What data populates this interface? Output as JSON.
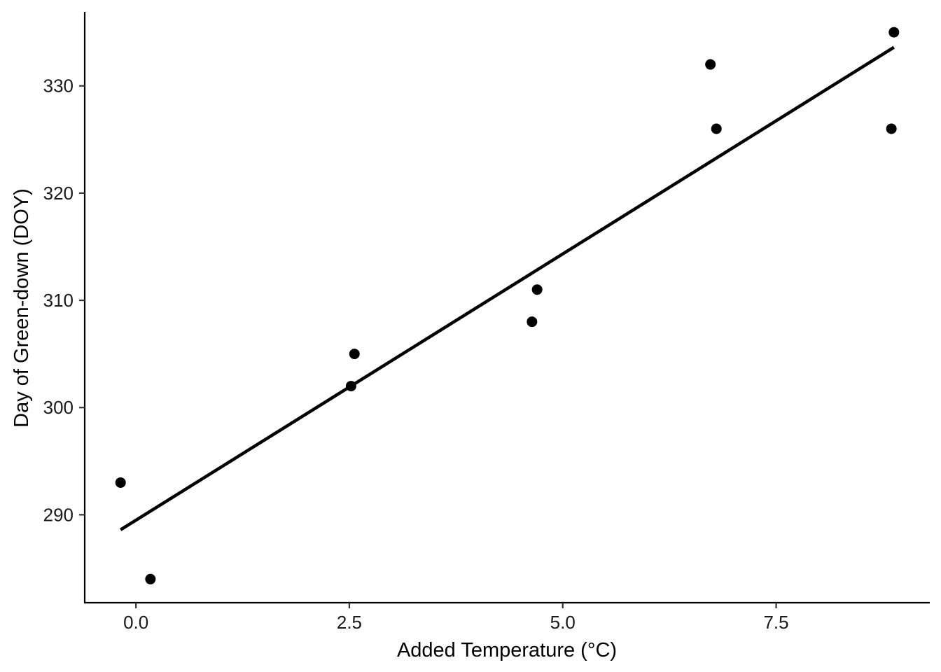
{
  "chart_data": {
    "type": "scatter",
    "title": "",
    "xlabel": "Added Temperature (°C)",
    "ylabel": "Day of Green-down (DOY)",
    "xlim": [
      -0.6,
      9.3
    ],
    "ylim": [
      281.8,
      336.9
    ],
    "x_ticks": [
      0.0,
      2.5,
      5.0,
      7.5
    ],
    "x_tick_labels": [
      "0.0",
      "2.5",
      "5.0",
      "7.5"
    ],
    "y_ticks": [
      290,
      300,
      310,
      320,
      330
    ],
    "y_tick_labels": [
      "290",
      "300",
      "310",
      "320",
      "330"
    ],
    "grid": false,
    "legend": "none",
    "points": [
      {
        "x": -0.18,
        "y": 293
      },
      {
        "x": 0.17,
        "y": 284
      },
      {
        "x": 2.52,
        "y": 302
      },
      {
        "x": 2.56,
        "y": 305
      },
      {
        "x": 4.64,
        "y": 308
      },
      {
        "x": 4.7,
        "y": 311
      },
      {
        "x": 6.73,
        "y": 332
      },
      {
        "x": 6.8,
        "y": 326
      },
      {
        "x": 8.85,
        "y": 326
      },
      {
        "x": 8.88,
        "y": 335
      }
    ],
    "trend_line": {
      "x": [
        -0.18,
        8.88
      ],
      "y": [
        288.6,
        333.6
      ]
    },
    "colors": {
      "points": "#000000",
      "line": "#000000",
      "axis": "#000000"
    }
  }
}
